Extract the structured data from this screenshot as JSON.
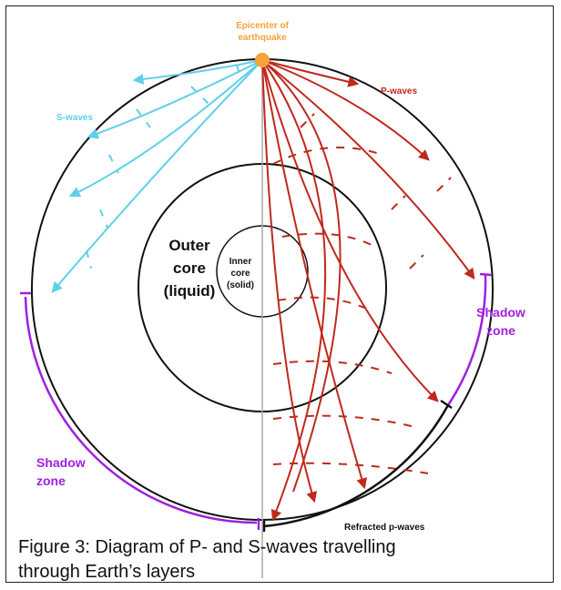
{
  "diagram": {
    "epicenter": [
      "Epicenter of",
      "earthquake"
    ],
    "s_waves": "S-waves",
    "p_waves": "P-waves",
    "outer_core": [
      "Outer",
      "core",
      "(liquid)"
    ],
    "inner_core": [
      "Inner",
      "core",
      "(solid)"
    ],
    "shadow_zone_right": [
      "Shadow",
      "zone"
    ],
    "shadow_zone_left": [
      "Shadow",
      "zone"
    ],
    "refracted": "Refracted p-waves"
  },
  "caption": [
    "Figure 3: Diagram of P- and S-waves travelling",
    "through Earth’s layers"
  ]
}
